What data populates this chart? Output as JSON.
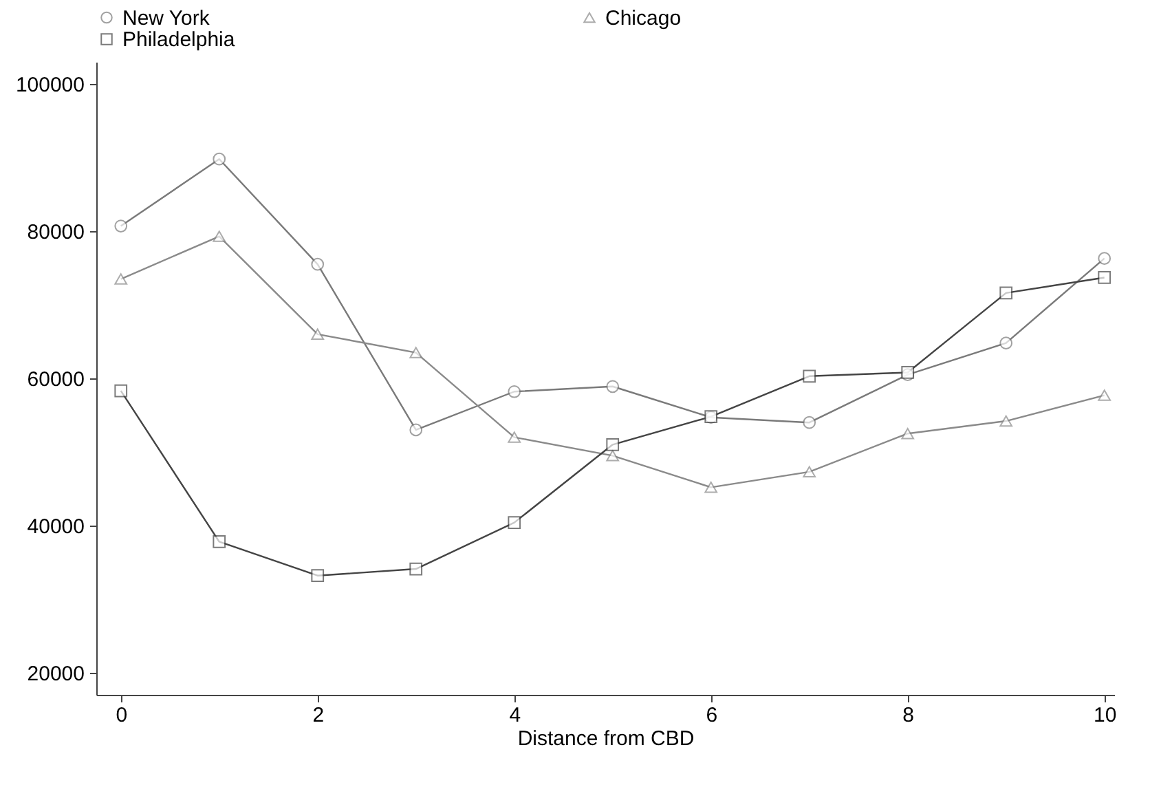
{
  "chart_data": {
    "type": "line",
    "xlabel": "Distance from CBD",
    "x": [
      0,
      1,
      2,
      3,
      4,
      5,
      6,
      7,
      8,
      9,
      10
    ],
    "series": [
      {
        "name": "New York",
        "color": "#7a7a7a",
        "marker": "circle",
        "values": [
          80700,
          89800,
          75500,
          53000,
          58200,
          58900,
          54700,
          54000,
          60500,
          64800,
          76300
        ]
      },
      {
        "name": "Chicago",
        "color": "#8a8a8a",
        "marker": "triangle",
        "values": [
          73500,
          79300,
          66000,
          63500,
          52000,
          49500,
          45200,
          47300,
          52500,
          54200,
          57700
        ]
      },
      {
        "name": "Philadelphia",
        "color": "#444444",
        "marker": "square",
        "values": [
          58300,
          37800,
          33200,
          34100,
          40400,
          51000,
          54800,
          60300,
          60800,
          71600,
          73700
        ]
      }
    ],
    "xlim": [
      -0.25,
      10.1
    ],
    "xticks": [
      0,
      2,
      4,
      6,
      8,
      10
    ],
    "ylim": [
      17000,
      103000
    ],
    "yticks": [
      20000,
      40000,
      60000,
      80000,
      100000
    ],
    "grid": false,
    "legend": "top left",
    "line_style": "solid"
  }
}
